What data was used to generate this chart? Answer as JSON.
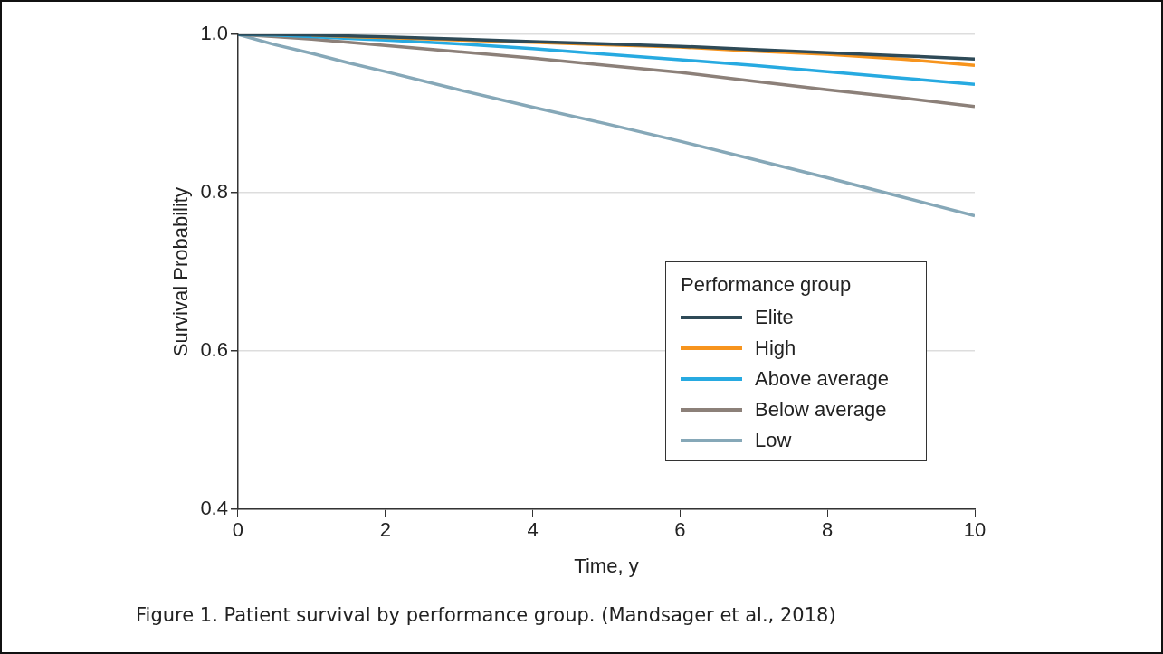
{
  "chart_data": {
    "type": "line",
    "xlabel": "Time, y",
    "ylabel": "Survival Probability",
    "legend_title": "Performance group",
    "x": [
      0,
      0.5,
      1,
      1.5,
      2,
      3,
      4,
      5,
      6,
      7,
      8,
      9,
      10
    ],
    "xlim": [
      0,
      10
    ],
    "xticks": [
      0,
      2,
      4,
      6,
      8,
      10
    ],
    "ylim": [
      0.4,
      1.0
    ],
    "yticks": [
      {
        "value": 0.4,
        "label": "0.4"
      },
      {
        "value": 0.6,
        "label": "0.6"
      },
      {
        "value": 0.8,
        "label": "0.8"
      },
      {
        "value": 1.0,
        "label": "1.0"
      }
    ],
    "grid": "y",
    "legend": "right",
    "marker": "none",
    "line_style": "solid",
    "series": [
      {
        "name": "Elite",
        "color": "#2e4a57",
        "values": [
          1.0,
          1.0,
          0.999,
          0.998,
          0.997,
          0.994,
          0.991,
          0.988,
          0.985,
          0.981,
          0.977,
          0.973,
          0.969
        ]
      },
      {
        "name": "High",
        "color": "#f7941d",
        "values": [
          null,
          null,
          0.999,
          0.997,
          0.996,
          0.993,
          0.99,
          0.987,
          0.984,
          0.979,
          0.975,
          0.969,
          0.961
        ]
      },
      {
        "name": "Above average",
        "color": "#27aae1",
        "values": [
          1.0,
          0.999,
          0.997,
          0.995,
          0.993,
          0.988,
          0.982,
          0.975,
          0.968,
          0.961,
          0.953,
          0.945,
          0.937
        ]
      },
      {
        "name": "Below average",
        "color": "#8c8079",
        "values": [
          1.0,
          0.997,
          0.994,
          0.99,
          0.986,
          0.978,
          0.97,
          0.961,
          0.952,
          0.941,
          0.93,
          0.92,
          0.909
        ]
      },
      {
        "name": "Low",
        "color": "#86a8b8",
        "values": [
          1.0,
          0.987,
          0.976,
          0.964,
          0.953,
          0.93,
          0.908,
          0.887,
          0.865,
          0.842,
          0.819,
          0.795,
          0.771
        ]
      }
    ],
    "annotations": [
      "Figure 1. Patient survival by performance group. (Mandsager et al., 2018)"
    ]
  }
}
